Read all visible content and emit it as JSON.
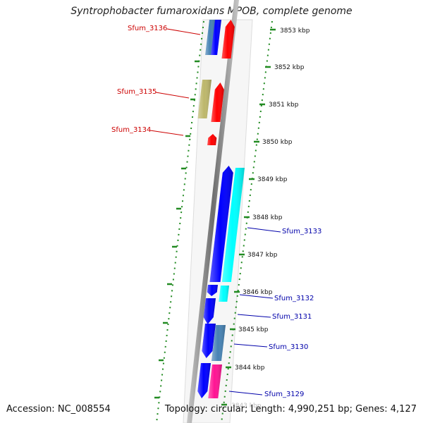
{
  "title": "Syntrophobacter fumaroxidans MPOB, complete genome",
  "accession": "Accession: NC_008554",
  "summary": "Topology: circular; Length: 4,990,251 bp; Genes: 4,127",
  "colors": {
    "left_label": "#cc0000",
    "right_label": "#0000aa",
    "backbone": "#808080",
    "ruler_ticks": "#228b22"
  },
  "kbp_ticks": [
    "3853 kbp",
    "3852 kbp",
    "3851 kbp",
    "3850 kbp",
    "3849 kbp",
    "3848 kbp",
    "3847 kbp",
    "3846 kbp",
    "3845 kbp",
    "3844 kbp",
    "3843 kbp"
  ],
  "left_labels": [
    "Sfum_3136",
    "Sfum_3135",
    "Sfum_3134"
  ],
  "right_labels": [
    "Sfum_3133",
    "Sfum_3132",
    "Sfum_3131",
    "Sfum_3130",
    "Sfum_3129"
  ],
  "genes": [
    {
      "name": "outer-gene-top-1",
      "color": "#4682b4"
    },
    {
      "name": "outer-gene-top-2",
      "color": "#0000ff"
    },
    {
      "name": "inner-gene-top",
      "color": "#ff0000"
    },
    {
      "name": "outer-gene-3135",
      "color": "#bdb76b"
    },
    {
      "name": "inner-gene-3135",
      "color": "#ff0000"
    },
    {
      "name": "inner-gene-3134",
      "color": "#ff0000"
    },
    {
      "name": "inner-gene-3133",
      "color": "#0000ff"
    },
    {
      "name": "outer-gene-3133",
      "color": "#00ffff"
    },
    {
      "name": "inner-gene-3132",
      "color": "#0000ff"
    },
    {
      "name": "outer-gene-3132",
      "color": "#00ffff"
    },
    {
      "name": "inner-gene-3131",
      "color": "#0000ff"
    },
    {
      "name": "inner-gene-3130",
      "color": "#0000ff"
    },
    {
      "name": "outer-gene-3130",
      "color": "#4682b4"
    },
    {
      "name": "inner-gene-3129",
      "color": "#0000ff"
    },
    {
      "name": "outer-gene-3129",
      "color": "#ff1493"
    }
  ]
}
